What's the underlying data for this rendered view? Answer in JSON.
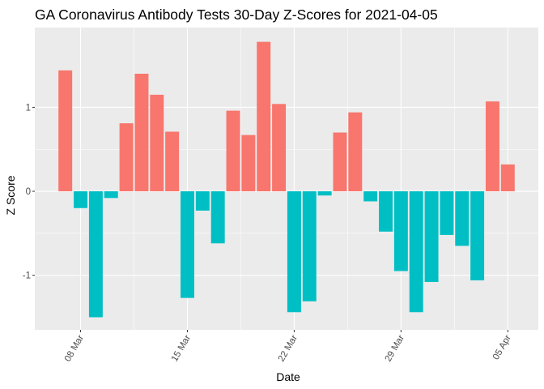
{
  "chart_data": {
    "type": "bar",
    "title": "GA Coronavirus Antibody Tests 30-Day Z-Scores for 2021-04-05",
    "xlabel": "Date",
    "ylabel": "Z Score",
    "grid": true,
    "legend": "none",
    "colors": {
      "positive": "#F8766D",
      "negative": "#00BFC4",
      "panel": "#EBEBEB",
      "grid_major": "#FFFFFF",
      "tick": "#4D4D4D"
    },
    "x_date_range": [
      "2021-03-05",
      "2021-04-07"
    ],
    "ylim": [
      -1.65,
      1.95
    ],
    "x_ticks": [
      {
        "date": "2021-03-08",
        "label": "08 Mar"
      },
      {
        "date": "2021-03-15",
        "label": "15 Mar"
      },
      {
        "date": "2021-03-22",
        "label": "22 Mar"
      },
      {
        "date": "2021-03-29",
        "label": "29 Mar"
      },
      {
        "date": "2021-04-05",
        "label": "05 Apr"
      }
    ],
    "y_ticks": [
      {
        "value": -1,
        "label": "-1"
      },
      {
        "value": 0,
        "label": "0"
      },
      {
        "value": 1,
        "label": "1"
      }
    ],
    "x": [
      "2021-03-07",
      "2021-03-08",
      "2021-03-09",
      "2021-03-10",
      "2021-03-11",
      "2021-03-12",
      "2021-03-13",
      "2021-03-14",
      "2021-03-15",
      "2021-03-16",
      "2021-03-17",
      "2021-03-18",
      "2021-03-19",
      "2021-03-20",
      "2021-03-21",
      "2021-03-22",
      "2021-03-23",
      "2021-03-24",
      "2021-03-25",
      "2021-03-26",
      "2021-03-27",
      "2021-03-28",
      "2021-03-29",
      "2021-03-30",
      "2021-03-31",
      "2021-04-01",
      "2021-04-02",
      "2021-04-03",
      "2021-04-04",
      "2021-04-05"
    ],
    "values": [
      1.44,
      -0.2,
      -1.5,
      -0.08,
      0.81,
      1.4,
      1.15,
      0.71,
      -1.27,
      -0.23,
      -0.62,
      0.96,
      0.67,
      1.78,
      1.04,
      -1.44,
      -1.31,
      -0.05,
      0.7,
      0.94,
      -0.12,
      -0.48,
      -0.95,
      -1.44,
      -1.08,
      -0.52,
      -0.65,
      -1.06,
      1.07,
      0.32
    ]
  }
}
